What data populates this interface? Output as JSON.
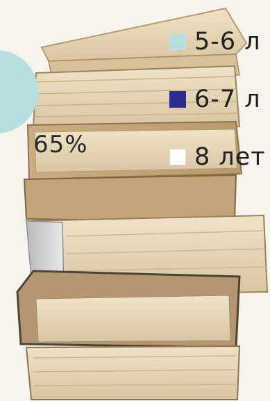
{
  "chart_data": {
    "type": "pie",
    "slices": [
      {
        "label": "5-6 л",
        "color": "#b7dfe0"
      },
      {
        "label": "6-7 л",
        "color": "#2b2d8f"
      },
      {
        "label": "8 лет",
        "color": "#ffffff"
      }
    ],
    "data_labels": [
      "65%"
    ]
  }
}
